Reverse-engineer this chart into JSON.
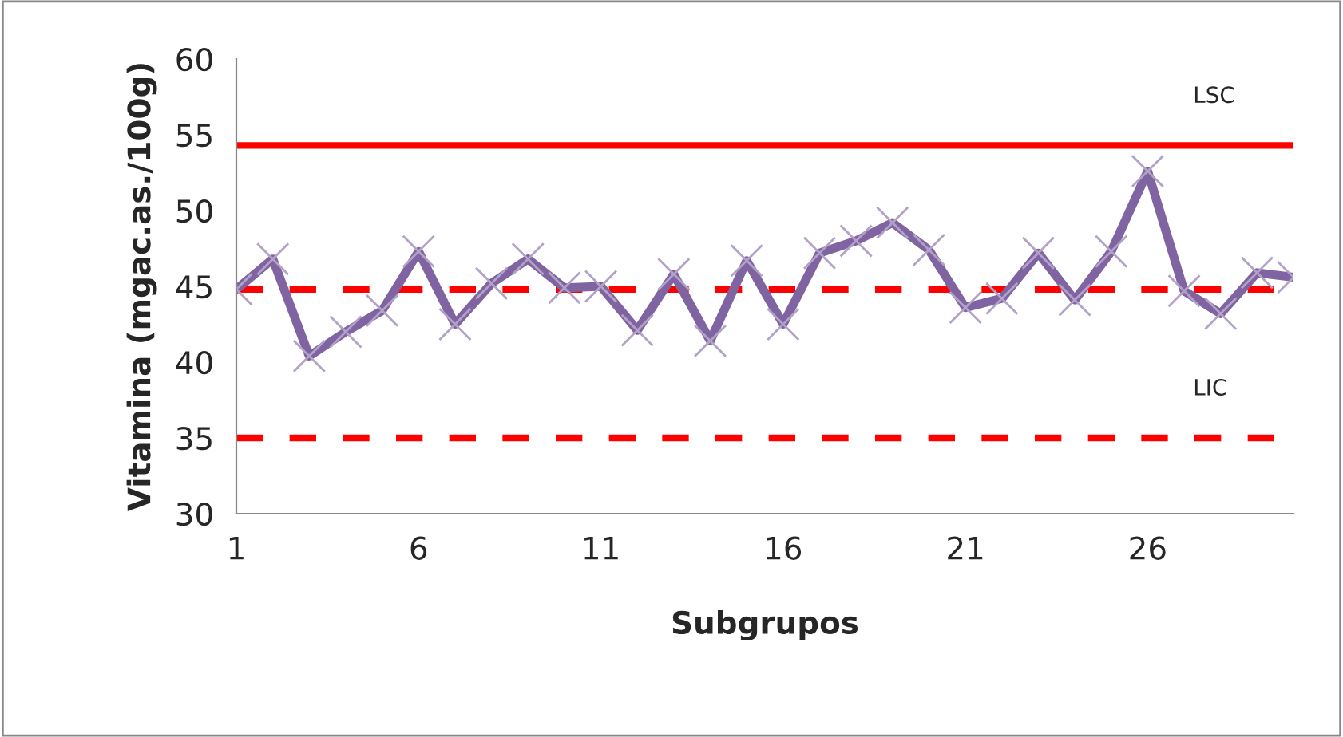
{
  "chart_data": {
    "type": "line",
    "xlabel": "Subgrupos",
    "ylabel": "Vitamina (mgac.as./100g)",
    "x": [
      1,
      2,
      3,
      4,
      5,
      6,
      7,
      8,
      9,
      10,
      11,
      12,
      13,
      14,
      15,
      16,
      17,
      18,
      19,
      20,
      21,
      22,
      23,
      24,
      25,
      26,
      27,
      28,
      29,
      30
    ],
    "series": [
      {
        "color": "#8064a2",
        "values": [
          44.8,
          46.8,
          40.4,
          42.0,
          43.4,
          47.3,
          42.5,
          45.2,
          46.8,
          44.9,
          45.0,
          42.1,
          45.8,
          41.4,
          46.7,
          42.5,
          47.2,
          48.0,
          49.2,
          47.4,
          43.6,
          44.2,
          47.2,
          44.1,
          47.3,
          52.6,
          44.7,
          43.2,
          45.9,
          45.6
        ]
      }
    ],
    "marker": "cross",
    "line_style": "solid",
    "xlim": [
      1,
      30
    ],
    "xticks": [
      1,
      6,
      11,
      16,
      21,
      26
    ],
    "ylim": [
      30,
      60
    ],
    "yticks": [
      30,
      35,
      40,
      45,
      50,
      55,
      60
    ],
    "grid": false,
    "ref_lines": [
      {
        "axis": "y",
        "value": 54.3,
        "color": "#ff0000",
        "line_style": "solid",
        "label": "LSC"
      },
      {
        "axis": "y",
        "value": 44.8,
        "color": "#ff0000",
        "line_style": "dashed"
      },
      {
        "axis": "y",
        "value": 35.0,
        "color": "#ff0000",
        "line_style": "dashed",
        "label": "LIC"
      }
    ]
  }
}
